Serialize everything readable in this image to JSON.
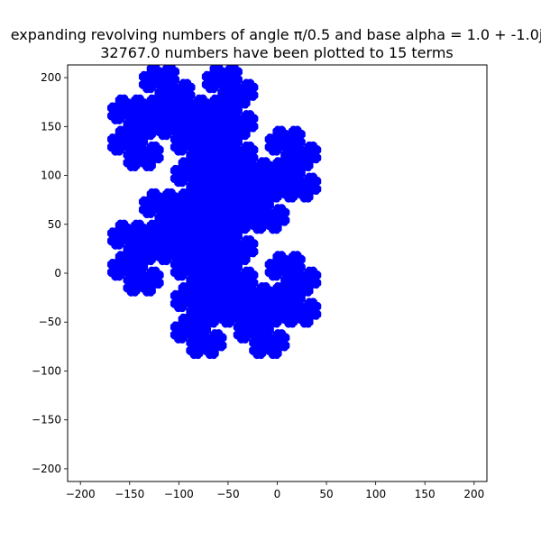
{
  "chart_data": {
    "type": "scatter",
    "title_line1": "expanding revolving numbers of angle π/0.5 and base alpha = 1.0 + -1.0j",
    "title_line2": "32767.0 numbers have been plotted to 15 terms",
    "xlabel": "",
    "ylabel": "",
    "xlim": [
      -213,
      213
    ],
    "ylim": [
      -213,
      213
    ],
    "xticks": [
      -200,
      -150,
      -100,
      -50,
      0,
      50,
      100,
      150,
      200
    ],
    "yticks": [
      -200,
      -150,
      -100,
      -50,
      0,
      50,
      100,
      150,
      200
    ],
    "xtick_labels": [
      "−200",
      "−150",
      "−100",
      "−50",
      "0",
      "50",
      "100",
      "150",
      "200"
    ],
    "ytick_labels": [
      "−200",
      "−150",
      "−100",
      "−50",
      "0",
      "50",
      "100",
      "150",
      "200"
    ],
    "grid": false,
    "marker_color": "#0000ff",
    "series": [
      {
        "generator": {
          "base_real": 1.0,
          "base_imag": -1.0,
          "terms": 15
        }
      }
    ]
  }
}
